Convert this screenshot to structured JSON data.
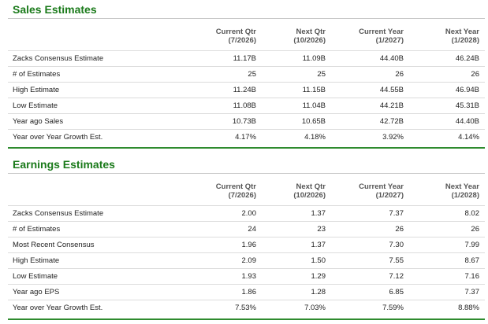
{
  "sales": {
    "title": "Sales Estimates",
    "columns": [
      {
        "line1": "Current Qtr",
        "line2": "(7/2026)"
      },
      {
        "line1": "Next Qtr",
        "line2": "(10/2026)"
      },
      {
        "line1": "Current Year",
        "line2": "(1/2027)"
      },
      {
        "line1": "Next Year",
        "line2": "(1/2028)"
      }
    ],
    "rows": [
      {
        "label": "Zacks Consensus Estimate",
        "values": [
          "11.17B",
          "11.09B",
          "44.40B",
          "46.24B"
        ]
      },
      {
        "label": "# of Estimates",
        "values": [
          "25",
          "25",
          "26",
          "26"
        ]
      },
      {
        "label": "High Estimate",
        "values": [
          "11.24B",
          "11.15B",
          "44.55B",
          "46.94B"
        ]
      },
      {
        "label": "Low Estimate",
        "values": [
          "11.08B",
          "11.04B",
          "44.21B",
          "45.31B"
        ]
      },
      {
        "label": "Year ago Sales",
        "values": [
          "10.73B",
          "10.65B",
          "42.72B",
          "44.40B"
        ]
      },
      {
        "label": "Year over Year Growth Est.",
        "values": [
          "4.17%",
          "4.18%",
          "3.92%",
          "4.14%"
        ]
      }
    ]
  },
  "earnings": {
    "title": "Earnings Estimates",
    "columns": [
      {
        "line1": "Current Qtr",
        "line2": "(7/2026)"
      },
      {
        "line1": "Next Qtr",
        "line2": "(10/2026)"
      },
      {
        "line1": "Current Year",
        "line2": "(1/2027)"
      },
      {
        "line1": "Next Year",
        "line2": "(1/2028)"
      }
    ],
    "rows": [
      {
        "label": "Zacks Consensus Estimate",
        "values": [
          "2.00",
          "1.37",
          "7.37",
          "8.02"
        ]
      },
      {
        "label": "# of Estimates",
        "values": [
          "24",
          "23",
          "26",
          "26"
        ]
      },
      {
        "label": "Most Recent Consensus",
        "values": [
          "1.96",
          "1.37",
          "7.30",
          "7.99"
        ]
      },
      {
        "label": "High Estimate",
        "values": [
          "2.09",
          "1.50",
          "7.55",
          "8.67"
        ]
      },
      {
        "label": "Low Estimate",
        "values": [
          "1.93",
          "1.29",
          "7.12",
          "7.16"
        ]
      },
      {
        "label": "Year ago EPS",
        "values": [
          "1.86",
          "1.28",
          "6.85",
          "7.37"
        ]
      },
      {
        "label": "Year over Year Growth Est.",
        "values": [
          "7.53%",
          "7.03%",
          "7.59%",
          "8.88%"
        ]
      }
    ]
  },
  "colors": {
    "title_green": "#1a7a1a",
    "rule_green": "#2e8b2e"
  }
}
